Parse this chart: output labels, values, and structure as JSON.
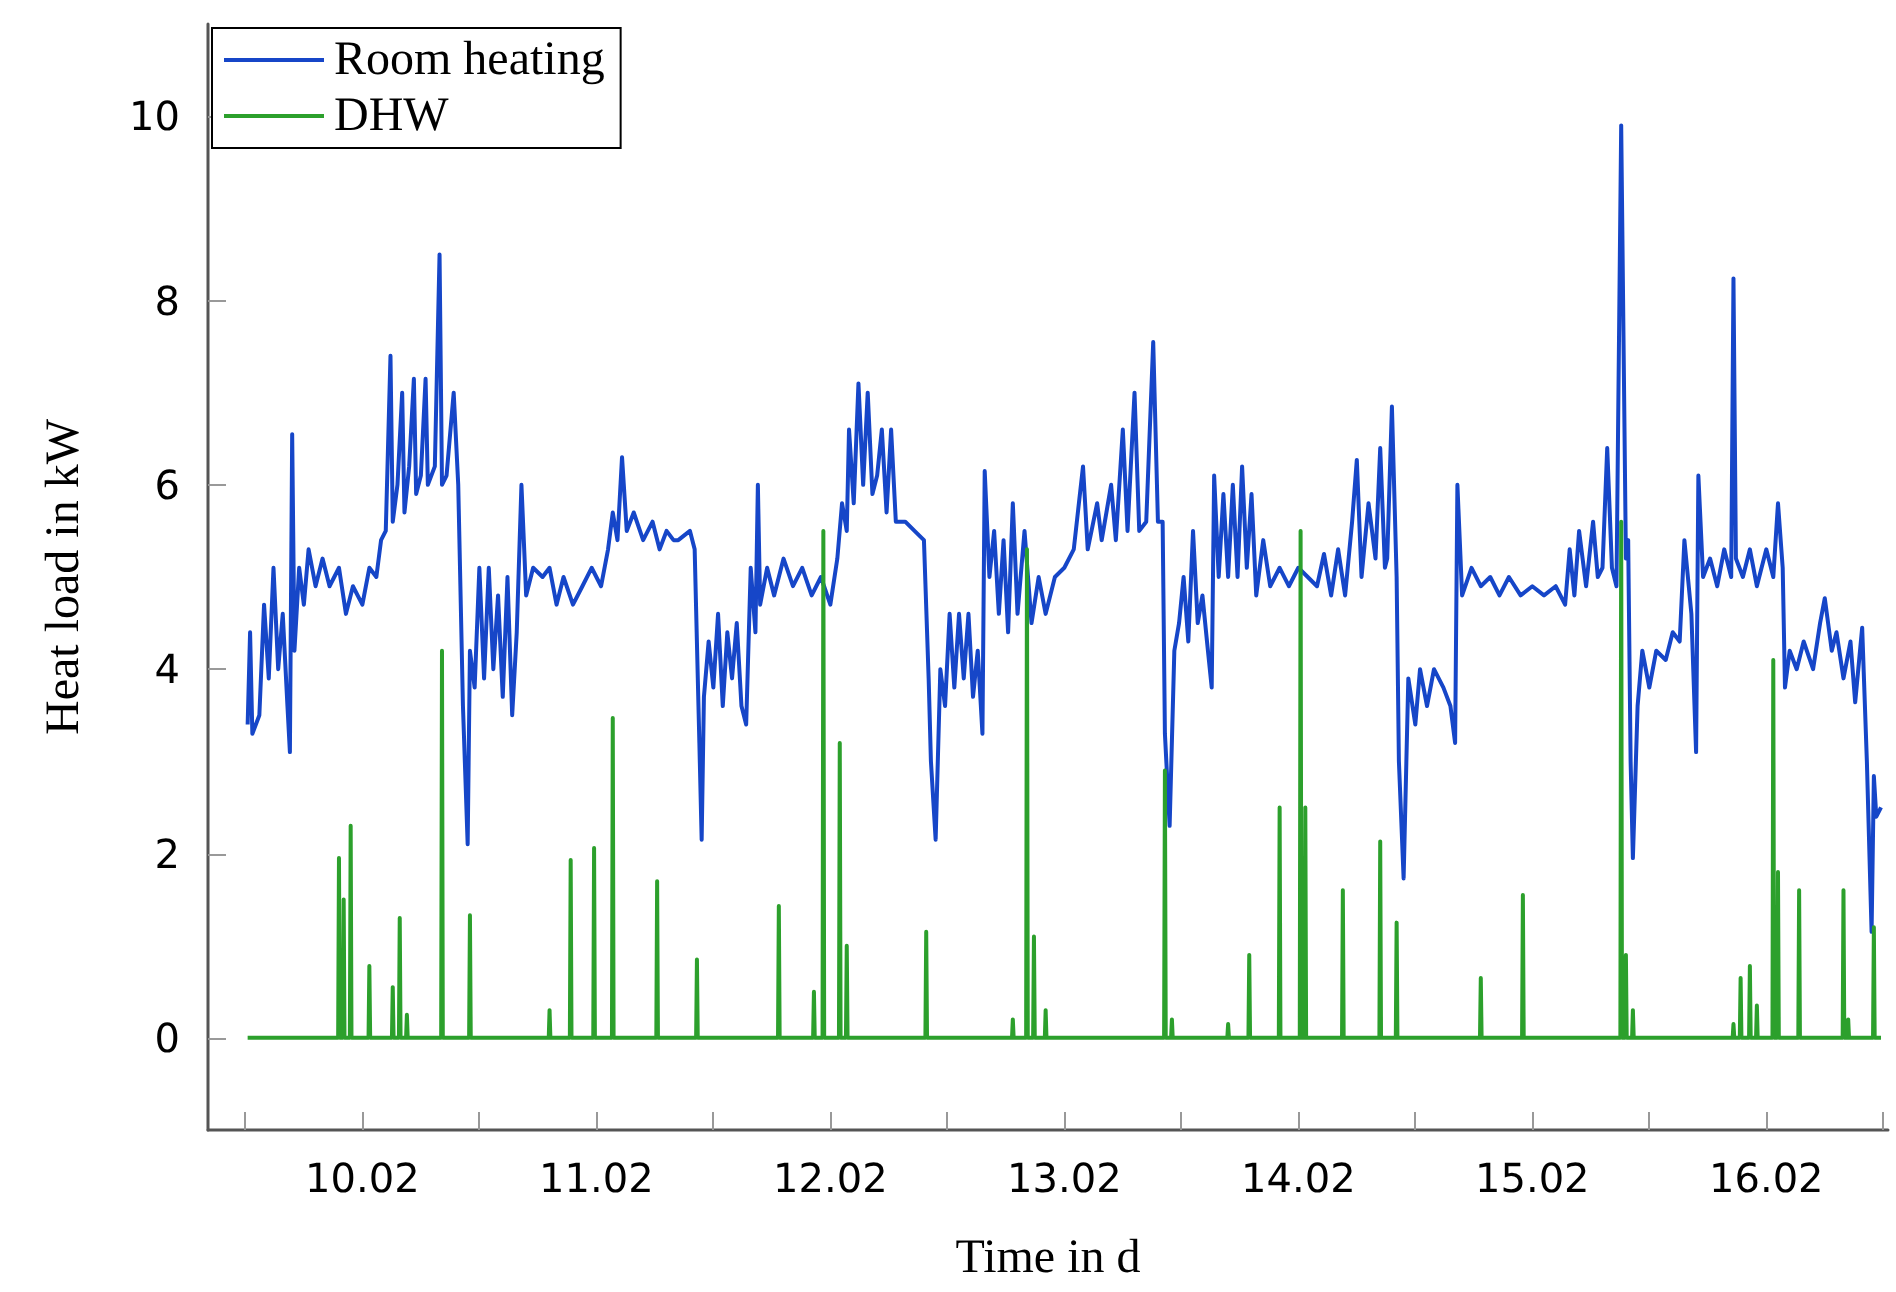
{
  "chart_data": {
    "type": "line",
    "xlabel": "Time in d",
    "ylabel": "Heat load in kW",
    "xlim": [
      "--02-09T08:10",
      "--02-16T12:29"
    ],
    "xticks": [
      {
        "value": "--02-09T12:00",
        "label": null
      },
      {
        "value": "--02-10",
        "label": "10.02"
      },
      {
        "value": "--02-10T12:00",
        "label": null
      },
      {
        "value": "--02-11",
        "label": "11.02"
      },
      {
        "value": "--02-11T12:00",
        "label": null
      },
      {
        "value": "--02-12",
        "label": "12.02"
      },
      {
        "value": "--02-12T12:00",
        "label": null
      },
      {
        "value": "--02-13",
        "label": "13.02"
      },
      {
        "value": "--02-13T12:00",
        "label": null
      },
      {
        "value": "--02-14",
        "label": "14.02"
      },
      {
        "value": "--02-14T12:00",
        "label": null
      },
      {
        "value": "--02-15",
        "label": "15.02"
      },
      {
        "value": "--02-15T12:00",
        "label": null
      },
      {
        "value": "--02-16",
        "label": "16.02"
      },
      {
        "value": "--02-16T12:00",
        "label": null
      }
    ],
    "ylim": [
      -1,
      11
    ],
    "yticks": [
      0,
      2,
      4,
      6,
      8,
      10
    ],
    "grid": false,
    "legend": "top left",
    "marker": "none",
    "line_style": "solid",
    "series": [
      {
        "name": "Room heating",
        "color": "#1646c8",
        "x": [
          "--02-09T12:14",
          "--02-09T12:29",
          "--02-09T12:43",
          "--02-09T13:26",
          "--02-09T13:55",
          "--02-09T14:24",
          "--02-09T14:53",
          "--02-09T15:22",
          "--02-09T15:50",
          "--02-09T16:19",
          "--02-09T16:34",
          "--02-09T16:48",
          "--02-09T17:02",
          "--02-09T17:31",
          "--02-09T18:00",
          "--02-09T18:29",
          "--02-09T19:12",
          "--02-09T19:55",
          "--02-09T20:38",
          "--02-09T21:36",
          "--02-09T22:19",
          "--02-09T23:02",
          "--02-10T00:00",
          "--02-10T00:43",
          "--02-10T01:26",
          "--02-10T01:55",
          "--02-10T02:24",
          "--02-10T02:53",
          "--02-10T03:07",
          "--02-10T03:36",
          "--02-10T04:05",
          "--02-10T04:19",
          "--02-10T04:48",
          "--02-10T05:17",
          "--02-10T05:31",
          "--02-10T06:00",
          "--02-10T06:29",
          "--02-10T06:43",
          "--02-10T07:26",
          "--02-10T07:55",
          "--02-10T08:10",
          "--02-10T08:38",
          "--02-10T09:22",
          "--02-10T09:50",
          "--02-10T10:19",
          "--02-10T10:48",
          "--02-10T11:02",
          "--02-10T11:31",
          "--02-10T12:00",
          "--02-10T12:29",
          "--02-10T12:58",
          "--02-10T13:26",
          "--02-10T13:55",
          "--02-10T14:24",
          "--02-10T14:53",
          "--02-10T15:22",
          "--02-10T15:50",
          "--02-10T16:19",
          "--02-10T16:48",
          "--02-10T17:31",
          "--02-10T18:29",
          "--02-10T19:12",
          "--02-10T19:55",
          "--02-10T20:38",
          "--02-10T21:36",
          "--02-10T22:34",
          "--02-10T23:31",
          "--02-11T00:29",
          "--02-11T01:12",
          "--02-11T01:41",
          "--02-11T02:10",
          "--02-11T02:38",
          "--02-11T03:07",
          "--02-11T03:50",
          "--02-11T04:48",
          "--02-11T05:46",
          "--02-11T06:29",
          "--02-11T07:12",
          "--02-11T07:55",
          "--02-11T08:24",
          "--02-11T09:36",
          "--02-11T10:05",
          "--02-11T10:34",
          "--02-11T10:48",
          "--02-11T11:02",
          "--02-11T11:31",
          "--02-11T12:00",
          "--02-11T12:29",
          "--02-11T12:58",
          "--02-11T13:26",
          "--02-11T13:55",
          "--02-11T14:24",
          "--02-11T14:53",
          "--02-11T15:22",
          "--02-11T15:50",
          "--02-11T16:19",
          "--02-11T16:34",
          "--02-11T16:48",
          "--02-11T17:31",
          "--02-11T18:14",
          "--02-11T19:12",
          "--02-11T20:10",
          "--02-11T21:07",
          "--02-11T22:05",
          "--02-11T23:02",
          "--02-12T00:00",
          "--02-12T00:43",
          "--02-12T01:12",
          "--02-12T01:41",
          "--02-12T01:55",
          "--02-12T02:24",
          "--02-12T02:53",
          "--02-12T03:22",
          "--02-12T03:50",
          "--02-12T04:19",
          "--02-12T04:48",
          "--02-12T05:17",
          "--02-12T05:46",
          "--02-12T06:14",
          "--02-12T06:43",
          "--02-12T07:41",
          "--02-12T08:38",
          "--02-12T09:36",
          "--02-12T10:05",
          "--02-12T10:19",
          "--02-12T10:48",
          "--02-12T11:17",
          "--02-12T11:46",
          "--02-12T12:14",
          "--02-12T12:43",
          "--02-12T13:12",
          "--02-12T13:41",
          "--02-12T14:10",
          "--02-12T14:38",
          "--02-12T15:07",
          "--02-12T15:36",
          "--02-12T15:50",
          "--02-12T16:19",
          "--02-12T16:48",
          "--02-12T17:17",
          "--02-12T17:46",
          "--02-12T18:14",
          "--02-12T18:43",
          "--02-12T19:12",
          "--02-12T19:55",
          "--02-12T20:38",
          "--02-12T21:22",
          "--02-12T22:05",
          "--02-12T23:02",
          "--02-13T00:00",
          "--02-13T00:58",
          "--02-13T01:55",
          "--02-13T02:24",
          "--02-13T03:22",
          "--02-13T03:50",
          "--02-13T04:48",
          "--02-13T05:17",
          "--02-13T06:00",
          "--02-13T06:29",
          "--02-13T07:12",
          "--02-13T07:41",
          "--02-13T08:24",
          "--02-13T09:07",
          "--02-13T09:36",
          "--02-13T10:05",
          "--02-13T10:19",
          "--02-13T10:48",
          "--02-13T11:17",
          "--02-13T11:46",
          "--02-13T12:14",
          "--02-13T12:43",
          "--02-13T13:12",
          "--02-13T13:41",
          "--02-13T14:10",
          "--02-13T14:38",
          "--02-13T15:07",
          "--02-13T15:22",
          "--02-13T15:50",
          "--02-13T16:19",
          "--02-13T16:48",
          "--02-13T17:17",
          "--02-13T17:46",
          "--02-13T18:14",
          "--02-13T18:43",
          "--02-13T19:12",
          "--02-13T19:41",
          "--02-13T20:24",
          "--02-13T21:07",
          "--02-13T22:05",
          "--02-13T23:02",
          "--02-14T00:00",
          "--02-14T00:58",
          "--02-14T01:55",
          "--02-14T02:38",
          "--02-14T03:22",
          "--02-14T04:05",
          "--02-14T04:48",
          "--02-14T05:31",
          "--02-14T06:00",
          "--02-14T06:29",
          "--02-14T07:12",
          "--02-14T07:55",
          "--02-14T08:24",
          "--02-14T08:53",
          "--02-14T09:07",
          "--02-14T09:36",
          "--02-14T10:05",
          "--02-14T10:19",
          "--02-14T10:48",
          "--02-14T11:17",
          "--02-14T12:00",
          "--02-14T12:29",
          "--02-14T13:12",
          "--02-14T13:55",
          "--02-14T14:53",
          "--02-14T15:36",
          "--02-14T16:05",
          "--02-14T16:19",
          "--02-14T16:48",
          "--02-14T17:46",
          "--02-14T18:43",
          "--02-14T19:41",
          "--02-14T20:38",
          "--02-14T21:36",
          "--02-14T22:48",
          "--02-15T00:00",
          "--02-15T01:12",
          "--02-15T02:24",
          "--02-15T03:22",
          "--02-15T03:50",
          "--02-15T04:19",
          "--02-15T04:48",
          "--02-15T05:31",
          "--02-15T06:14",
          "--02-15T06:43",
          "--02-15T07:12",
          "--02-15T07:41",
          "--02-15T08:10",
          "--02-15T08:38",
          "--02-15T09:07",
          "--02-15T09:36",
          "--02-15T09:50",
          "--02-15T10:05",
          "--02-15T10:19",
          "--02-15T10:48",
          "--02-15T11:17",
          "--02-15T12:00",
          "--02-15T12:43",
          "--02-15T13:41",
          "--02-15T14:24",
          "--02-15T15:07",
          "--02-15T15:36",
          "--02-15T16:19",
          "--02-15T16:48",
          "--02-15T17:02",
          "--02-15T17:31",
          "--02-15T18:14",
          "--02-15T18:58",
          "--02-15T19:41",
          "--02-15T20:24",
          "--02-15T20:38",
          "--02-15T20:53",
          "--02-15T21:36",
          "--02-15T22:19",
          "--02-15T23:02",
          "--02-16T00:00",
          "--02-16T00:43",
          "--02-16T01:12",
          "--02-16T01:41",
          "--02-16T01:55",
          "--02-16T02:24",
          "--02-16T03:07",
          "--02-16T03:50",
          "--02-16T04:48",
          "--02-16T05:31",
          "--02-16T06:00",
          "--02-16T06:43",
          "--02-16T07:12",
          "--02-16T07:55",
          "--02-16T08:38",
          "--02-16T09:07",
          "--02-16T09:50",
          "--02-16T10:19",
          "--02-16T10:48",
          "--02-16T11:02",
          "--02-16T11:17",
          "--02-16T11:46"
        ],
        "values": [
          3.4,
          4.4,
          3.3,
          3.5,
          4.7,
          3.9,
          5.1,
          4.0,
          4.6,
          3.6,
          3.1,
          6.55,
          4.2,
          5.1,
          4.7,
          5.3,
          4.9,
          5.2,
          4.9,
          5.1,
          4.6,
          4.9,
          4.7,
          5.1,
          5.0,
          5.4,
          5.5,
          7.4,
          5.6,
          6.0,
          7.0,
          5.7,
          6.2,
          7.15,
          5.9,
          6.1,
          7.15,
          6.0,
          6.2,
          8.5,
          6.0,
          6.1,
          7.0,
          6.0,
          3.6,
          2.1,
          4.2,
          3.8,
          5.1,
          3.9,
          5.1,
          4.0,
          4.8,
          3.7,
          5.0,
          3.5,
          4.4,
          6.0,
          4.8,
          5.1,
          5.0,
          5.1,
          4.7,
          5.0,
          4.7,
          4.9,
          5.1,
          4.9,
          5.3,
          5.7,
          5.4,
          6.3,
          5.5,
          5.7,
          5.4,
          5.6,
          5.3,
          5.5,
          5.4,
          5.4,
          5.5,
          5.3,
          3.2,
          2.15,
          3.7,
          4.3,
          3.8,
          4.6,
          3.6,
          4.4,
          3.9,
          4.5,
          3.6,
          3.4,
          5.1,
          4.4,
          6.0,
          4.7,
          5.1,
          4.8,
          5.2,
          4.9,
          5.1,
          4.8,
          5.0,
          4.7,
          5.2,
          5.8,
          5.5,
          6.6,
          5.8,
          7.1,
          6.0,
          7.0,
          5.9,
          6.1,
          6.6,
          5.7,
          6.6,
          5.6,
          5.6,
          5.5,
          5.4,
          3.9,
          3.0,
          2.15,
          4.0,
          3.6,
          4.6,
          3.8,
          4.6,
          3.9,
          4.6,
          3.7,
          4.2,
          3.3,
          6.15,
          5.0,
          5.5,
          4.6,
          5.4,
          4.4,
          5.8,
          4.6,
          5.5,
          4.5,
          5.0,
          4.6,
          5.0,
          5.1,
          5.3,
          6.2,
          5.3,
          5.8,
          5.4,
          6.0,
          5.4,
          6.6,
          5.5,
          7.0,
          5.5,
          5.6,
          7.55,
          5.6,
          5.6,
          3.3,
          2.3,
          4.2,
          4.5,
          5.0,
          4.3,
          5.5,
          4.5,
          4.8,
          4.3,
          3.8,
          6.1,
          5.0,
          5.9,
          5.0,
          6.0,
          5.0,
          6.2,
          5.1,
          5.9,
          4.8,
          5.4,
          4.9,
          5.1,
          4.9,
          5.1,
          5.0,
          4.9,
          5.25,
          4.8,
          5.3,
          4.8,
          5.6,
          6.27,
          5.0,
          5.8,
          5.2,
          6.4,
          5.1,
          5.2,
          6.85,
          5.0,
          3.0,
          1.73,
          3.9,
          3.4,
          4.0,
          3.6,
          4.0,
          3.8,
          3.6,
          3.2,
          6.0,
          4.8,
          5.1,
          4.9,
          5.0,
          4.8,
          5.0,
          4.8,
          4.9,
          4.8,
          4.9,
          4.7,
          5.3,
          4.8,
          5.5,
          4.9,
          5.6,
          5.0,
          5.1,
          6.4,
          5.1,
          4.9,
          9.9,
          5.2,
          5.4,
          3.0,
          1.95,
          3.6,
          4.2,
          3.8,
          4.2,
          4.1,
          4.4,
          4.3,
          5.4,
          4.6,
          3.1,
          6.1,
          5.0,
          5.2,
          4.9,
          5.3,
          5.0,
          8.24,
          5.2,
          5.0,
          5.3,
          4.9,
          5.3,
          5.0,
          5.8,
          5.1,
          3.8,
          4.2,
          4.0,
          4.3,
          4.0,
          4.5,
          4.77,
          4.2,
          4.4,
          3.9,
          4.3,
          3.64,
          4.45,
          3.0,
          1.15,
          2.84,
          2.4,
          2.5
        ]
      },
      {
        "name": "DHW",
        "color": "#2ca02c",
        "x": [
          "--02-09T12:14",
          "--02-09T21:31",
          "--02-09T21:36",
          "--02-09T21:41",
          "--02-09T22:00",
          "--02-09T22:05",
          "--02-09T22:10",
          "--02-09T22:43",
          "--02-09T22:48",
          "--02-09T22:53",
          "--02-10T00:38",
          "--02-10T00:43",
          "--02-10T00:48",
          "--02-10T03:02",
          "--02-10T03:07",
          "--02-10T03:12",
          "--02-10T03:45",
          "--02-10T03:50",
          "--02-10T03:55",
          "--02-10T04:29",
          "--02-10T04:34",
          "--02-10T04:39",
          "--02-10T08:05",
          "--02-10T08:10",
          "--02-10T08:15",
          "--02-10T10:57",
          "--02-10T11:02",
          "--02-10T11:07",
          "--02-10T19:07",
          "--02-10T19:12",
          "--02-10T19:17",
          "--02-10T21:17",
          "--02-10T21:22",
          "--02-10T21:27",
          "--02-10T23:41",
          "--02-10T23:46",
          "--02-10T23:51",
          "--02-11T01:36",
          "--02-11T01:41",
          "--02-11T01:46",
          "--02-11T06:09",
          "--02-11T06:14",
          "--02-11T06:19",
          "--02-11T10:14",
          "--02-11T10:19",
          "--02-11T10:24",
          "--02-11T18:38",
          "--02-11T18:43",
          "--02-11T18:48",
          "--02-11T22:14",
          "--02-11T22:19",
          "--02-11T22:24",
          "--02-11T23:12",
          "--02-11T23:17",
          "--02-11T23:22",
          "--02-12T00:53",
          "--02-12T00:58",
          "--02-12T01:03",
          "--02-12T01:36",
          "--02-12T01:41",
          "--02-12T01:46",
          "--02-12T09:45",
          "--02-12T09:50",
          "--02-12T09:55",
          "--02-12T18:38",
          "--02-12T18:43",
          "--02-12T18:48",
          "--02-12T20:05",
          "--02-12T20:10",
          "--02-12T20:15",
          "--02-12T20:48",
          "--02-12T20:53",
          "--02-12T20:58",
          "--02-12T22:00",
          "--02-12T22:05",
          "--02-12T22:10",
          "--02-13T10:14",
          "--02-13T10:19",
          "--02-13T10:24",
          "--02-13T10:57",
          "--02-13T11:02",
          "--02-13T11:07",
          "--02-13T16:43",
          "--02-13T16:48",
          "--02-13T16:53",
          "--02-13T18:53",
          "--02-13T18:58",
          "--02-13T19:03",
          "--02-13T22:00",
          "--02-13T22:05",
          "--02-13T22:10",
          "--02-14T00:09",
          "--02-14T00:14",
          "--02-14T00:19",
          "--02-14T00:38",
          "--02-14T00:43",
          "--02-14T00:48",
          "--02-14T04:29",
          "--02-14T04:34",
          "--02-14T04:39",
          "--02-14T08:19",
          "--02-14T08:24",
          "--02-14T08:29",
          "--02-14T10:00",
          "--02-14T10:05",
          "--02-14T10:10",
          "--02-14T18:38",
          "--02-14T18:43",
          "--02-14T18:48",
          "--02-14T22:57",
          "--02-14T23:02",
          "--02-14T23:07",
          "--02-15T09:02",
          "--02-15T09:07",
          "--02-15T09:12",
          "--02-15T09:31",
          "--02-15T09:36",
          "--02-15T09:41",
          "--02-15T10:14",
          "--02-15T10:19",
          "--02-15T10:24",
          "--02-15T20:33",
          "--02-15T20:38",
          "--02-15T20:43",
          "--02-15T21:17",
          "--02-15T21:22",
          "--02-15T21:27",
          "--02-15T22:14",
          "--02-15T22:19",
          "--02-15T22:24",
          "--02-15T22:57",
          "--02-15T23:02",
          "--02-15T23:07",
          "--02-16T00:38",
          "--02-16T00:43",
          "--02-16T00:48",
          "--02-16T01:07",
          "--02-16T01:12",
          "--02-16T01:17",
          "--02-16T03:17",
          "--02-16T03:22",
          "--02-16T03:27",
          "--02-16T07:50",
          "--02-16T07:55",
          "--02-16T08:00",
          "--02-16T08:19",
          "--02-16T08:24",
          "--02-16T08:29",
          "--02-16T10:57",
          "--02-16T11:02",
          "--02-16T11:07",
          "--02-16T11:46"
        ],
        "values": [
          0,
          0,
          1.95,
          0,
          0,
          1.5,
          0,
          0,
          2.3,
          0,
          0,
          0.78,
          0,
          0,
          0.55,
          0,
          0,
          1.3,
          0,
          0,
          0.25,
          0,
          0,
          4.2,
          0,
          0,
          1.33,
          0,
          0,
          0.3,
          0,
          0,
          1.93,
          0,
          0,
          2.06,
          0,
          0,
          3.47,
          0,
          0,
          1.7,
          0,
          0,
          0.85,
          0,
          0,
          1.43,
          0,
          0,
          0.5,
          0,
          0,
          5.5,
          0,
          0,
          3.2,
          0,
          0,
          1.0,
          0,
          0,
          1.15,
          0,
          0,
          0.2,
          0,
          0,
          5.3,
          0,
          0,
          1.1,
          0,
          0,
          0.3,
          0,
          0,
          2.9,
          0,
          0,
          0.2,
          0,
          0,
          0.15,
          0,
          0,
          0.9,
          0,
          0,
          2.5,
          0,
          0,
          5.5,
          0,
          0,
          2.5,
          0,
          0,
          1.6,
          0,
          0,
          2.13,
          0,
          0,
          1.25,
          0,
          0,
          0.65,
          0,
          0,
          1.55,
          0,
          0,
          5.6,
          0,
          0,
          0.9,
          0,
          0,
          0.3,
          0,
          0,
          0.15,
          0,
          0,
          0.65,
          0,
          0,
          0.78,
          0,
          0,
          0.35,
          0,
          0,
          4.1,
          0,
          0,
          1.8,
          0,
          0,
          1.6,
          0,
          0,
          1.6,
          0,
          0,
          0.2,
          0,
          0,
          1.2,
          0,
          0
        ]
      }
    ]
  }
}
